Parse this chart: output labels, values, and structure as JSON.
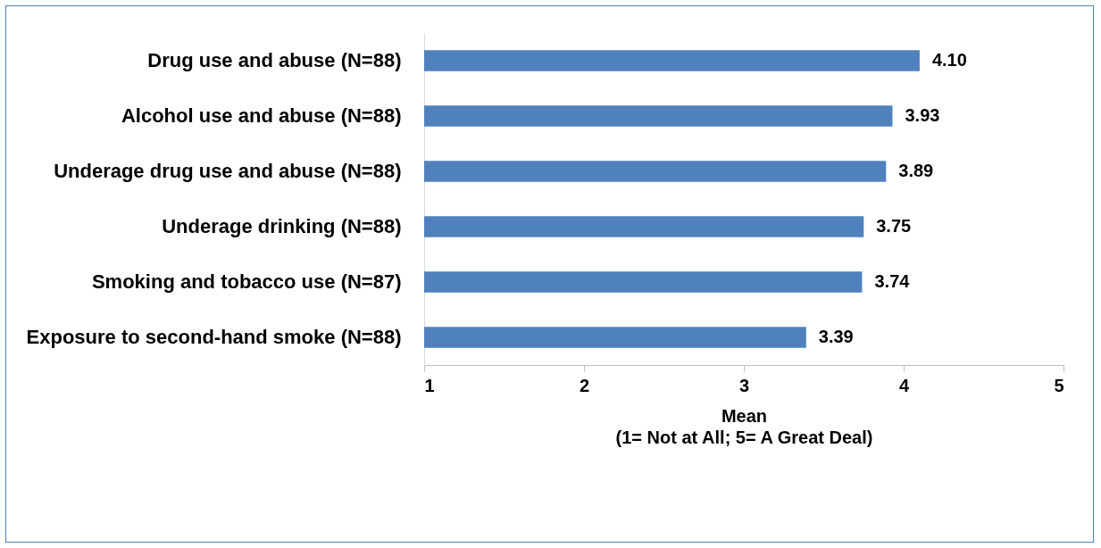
{
  "chart_data": {
    "type": "bar",
    "orientation": "horizontal",
    "categories": [
      "Drug use and abuse (N=88)",
      "Alcohol use and abuse (N=88)",
      "Underage drug use and abuse (N=88)",
      "Underage drinking  (N=88)",
      "Smoking and tobacco use (N=87)",
      "Exposure to second-hand smoke (N=88)"
    ],
    "values": [
      4.1,
      3.93,
      3.89,
      3.75,
      3.74,
      3.39
    ],
    "value_labels": [
      "4.10",
      "3.93",
      "3.89",
      "3.75",
      "3.74",
      "3.39"
    ],
    "color": "#4f81bd",
    "xlim": [
      1,
      5
    ],
    "xticks": [
      {
        "value": 1,
        "label": "1"
      },
      {
        "value": 2,
        "label": "2"
      },
      {
        "value": 3,
        "label": "3"
      },
      {
        "value": 4,
        "label": "4"
      },
      {
        "value": 5,
        "label": "5"
      }
    ],
    "xlabel": "Mean\n(1= Not at All; 5= A Great Deal)"
  }
}
